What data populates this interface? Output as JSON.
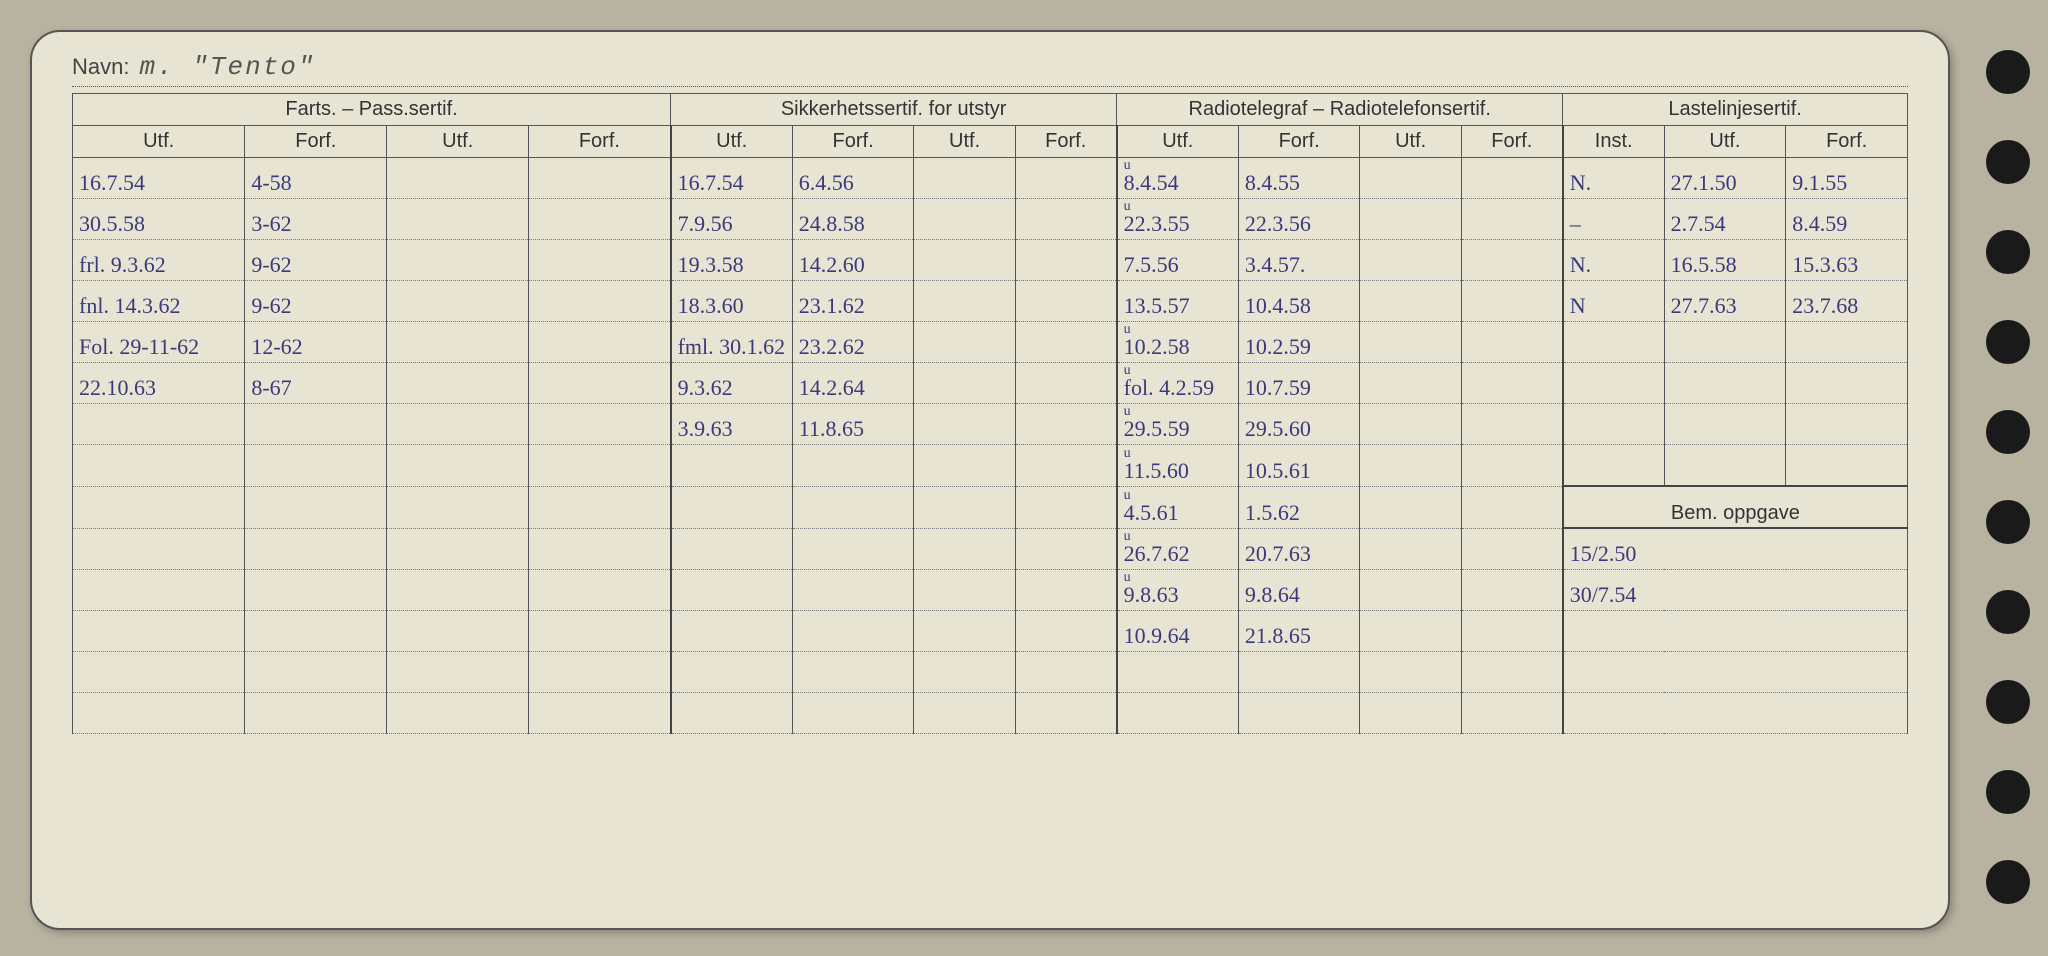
{
  "page": {
    "background_color": "#b8b2a0",
    "card_color": "#e8e4d4",
    "ink_color": "#3a3a7a",
    "print_color": "#333333",
    "line_color": "#555555",
    "hole_color": "#1a1a1a"
  },
  "navn": {
    "label": "Navn:",
    "value": "m.  \"Tento\""
  },
  "groups": {
    "farts": "Farts. – Pass.sertif.",
    "sikker": "Sikkerhetssertif. for utstyr",
    "radio": "Radiotelegraf – Radiotelefonsertif.",
    "laste": "Lastelinjesertif."
  },
  "sub": {
    "utf": "Utf.",
    "forf": "Forf.",
    "inst": "Inst."
  },
  "bem": {
    "label": "Bem. oppgave"
  },
  "rows": [
    {
      "f1": "16.7.54",
      "f2": "4-58",
      "f3": "",
      "f4": "",
      "s1": "16.7.54",
      "s2": "6.4.56",
      "s3": "",
      "s4": "",
      "r1": "8.4.54",
      "r1p": "u",
      "r2": "8.4.55",
      "r3": "",
      "r4": "",
      "l1": "N.",
      "l2": "27.1.50",
      "l3": "9.1.55"
    },
    {
      "f1": "30.5.58",
      "f2": "3-62",
      "f3": "",
      "f4": "",
      "s1": "7.9.56",
      "s2": "24.8.58",
      "s3": "",
      "s4": "",
      "r1": "22.3.55",
      "r1p": "u",
      "r2": "22.3.56",
      "r3": "",
      "r4": "",
      "l1": "–",
      "l2": "2.7.54",
      "l3": "8.4.59"
    },
    {
      "f1": "frl. 9.3.62",
      "f2": "9-62",
      "f3": "",
      "f4": "",
      "s1": "19.3.58",
      "s2": "14.2.60",
      "s3": "",
      "s4": "",
      "r1": "7.5.56",
      "r2": "3.4.57.",
      "r3": "",
      "r4": "",
      "l1": "N.",
      "l2": "16.5.58",
      "l3": "15.3.63"
    },
    {
      "f1": "fnl. 14.3.62",
      "f2": "9-62",
      "f3": "",
      "f4": "",
      "s1": "18.3.60",
      "s2": "23.1.62",
      "s3": "",
      "s4": "",
      "r1": "13.5.57",
      "r2": "10.4.58",
      "r3": "",
      "r4": "",
      "l1": "N",
      "l2": "27.7.63",
      "l3": "23.7.68"
    },
    {
      "f1": "Fol. 29-11-62",
      "f2": "12-62",
      "f3": "",
      "f4": "",
      "s1": "fml. 30.1.62",
      "s2": "23.2.62",
      "s3": "",
      "s4": "",
      "r1": "10.2.58",
      "r1p": "u",
      "r2": "10.2.59",
      "r3": "",
      "r4": "",
      "l1": "",
      "l2": "",
      "l3": ""
    },
    {
      "f1": "22.10.63",
      "f2": "8-67",
      "f3": "",
      "f4": "",
      "s1": "9.3.62",
      "s2": "14.2.64",
      "s3": "",
      "s4": "",
      "r1": "fol. 4.2.59",
      "r1p": "u",
      "r2": "10.7.59",
      "r3": "",
      "r4": "",
      "l1": "",
      "l2": "",
      "l3": ""
    },
    {
      "f1": "",
      "f2": "",
      "f3": "",
      "f4": "",
      "s1": "3.9.63",
      "s2": "11.8.65",
      "s3": "",
      "s4": "",
      "r1": "29.5.59",
      "r1p": "u",
      "r2": "29.5.60",
      "r3": "",
      "r4": "",
      "l1": "",
      "l2": "",
      "l3": ""
    },
    {
      "f1": "",
      "f2": "",
      "f3": "",
      "f4": "",
      "s1": "",
      "s2": "",
      "s3": "",
      "s4": "",
      "r1": "11.5.60",
      "r1p": "u",
      "r2": "10.5.61",
      "r3": "",
      "r4": "",
      "l1": "",
      "l2": "",
      "l3": ""
    },
    {
      "f1": "",
      "f2": "",
      "f3": "",
      "f4": "",
      "s1": "",
      "s2": "",
      "s3": "",
      "s4": "",
      "r1": "4.5.61",
      "r1p": "u",
      "r2": "1.5.62",
      "r3": "",
      "r4": "",
      "bem_row": true
    },
    {
      "f1": "",
      "f2": "",
      "f3": "",
      "f4": "",
      "s1": "",
      "s2": "",
      "s3": "",
      "s4": "",
      "r1": "26.7.62",
      "r1p": "u",
      "r2": "20.7.63",
      "r3": "",
      "r4": "",
      "b1": "15/2.50"
    },
    {
      "f1": "",
      "f2": "",
      "f3": "",
      "f4": "",
      "s1": "",
      "s2": "",
      "s3": "",
      "s4": "",
      "r1": "9.8.63",
      "r1p": "u",
      "r2": "9.8.64",
      "r3": "",
      "r4": "",
      "b1": "30/7.54"
    },
    {
      "f1": "",
      "f2": "",
      "f3": "",
      "f4": "",
      "s1": "",
      "s2": "",
      "s3": "",
      "s4": "",
      "r1": "10.9.64",
      "r2": "21.8.65",
      "r3": "",
      "r4": "",
      "b1": ""
    },
    {
      "f1": "",
      "f2": "",
      "f3": "",
      "f4": "",
      "s1": "",
      "s2": "",
      "s3": "",
      "s4": "",
      "r1": "",
      "r2": "",
      "r3": "",
      "r4": "",
      "b1": ""
    },
    {
      "f1": "",
      "f2": "",
      "f3": "",
      "f4": "",
      "s1": "",
      "s2": "",
      "s3": "",
      "s4": "",
      "r1": "",
      "r2": "",
      "r3": "",
      "r4": "",
      "b1": ""
    }
  ]
}
